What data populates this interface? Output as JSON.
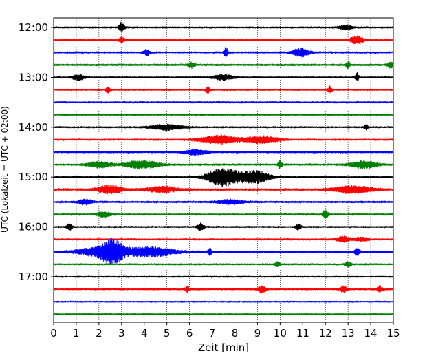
{
  "chart_data": {
    "type": "line",
    "title": "",
    "xlabel": "Zeit  [min]",
    "ylabel": "UTC (Lokalzeit = UTC + 02:00)",
    "xlim": [
      0,
      15
    ],
    "x_ticks": [
      "0",
      "1",
      "2",
      "3",
      "4",
      "5",
      "6",
      "7",
      "8",
      "9",
      "10",
      "11",
      "12",
      "13",
      "14",
      "15"
    ],
    "y_tick_labels": [
      "12:00",
      "13:00",
      "14:00",
      "15:00",
      "16:00",
      "17:00"
    ],
    "grid": "vertical dotted at each minute",
    "trace_interval_minutes": 15,
    "first_trace": "12:00",
    "color_cycle": [
      "#000000",
      "#ff0000",
      "#0000ff",
      "#008000"
    ],
    "traces": [
      {
        "start": "12:00",
        "noise": 1.0,
        "events": [
          {
            "t": 3.0,
            "amp": 7,
            "w": 0.08
          },
          {
            "t": 12.9,
            "amp": 3,
            "w": 0.2
          }
        ]
      },
      {
        "start": "12:15",
        "noise": 1.0,
        "events": [
          {
            "t": 3.0,
            "amp": 4,
            "w": 0.1
          },
          {
            "t": 13.4,
            "amp": 6,
            "w": 0.2
          }
        ]
      },
      {
        "start": "12:30",
        "noise": 1.1,
        "events": [
          {
            "t": 4.1,
            "amp": 4,
            "w": 0.1
          },
          {
            "t": 7.6,
            "amp": 8,
            "w": 0.06
          },
          {
            "t": 10.9,
            "amp": 6,
            "w": 0.25
          }
        ]
      },
      {
        "start": "12:45",
        "noise": 1.2,
        "events": [
          {
            "t": 6.1,
            "amp": 4,
            "w": 0.1
          },
          {
            "t": 13.0,
            "amp": 5,
            "w": 0.06
          },
          {
            "t": 14.9,
            "amp": 5,
            "w": 0.1
          }
        ]
      },
      {
        "start": "13:00",
        "noise": 1.0,
        "events": [
          {
            "t": 1.1,
            "amp": 4,
            "w": 0.2
          },
          {
            "t": 7.5,
            "amp": 4,
            "w": 0.3
          },
          {
            "t": 13.4,
            "amp": 6,
            "w": 0.06
          }
        ]
      },
      {
        "start": "13:15",
        "noise": 1.0,
        "events": [
          {
            "t": 2.4,
            "amp": 5,
            "w": 0.06
          },
          {
            "t": 6.8,
            "amp": 5,
            "w": 0.06
          },
          {
            "t": 12.2,
            "amp": 5,
            "w": 0.06
          }
        ]
      },
      {
        "start": "13:30",
        "noise": 1.1,
        "events": []
      },
      {
        "start": "13:45",
        "noise": 1.0,
        "events": []
      },
      {
        "start": "14:00",
        "noise": 1.0,
        "events": [
          {
            "t": 5.0,
            "amp": 4,
            "w": 0.5
          },
          {
            "t": 13.8,
            "amp": 4,
            "w": 0.06
          }
        ]
      },
      {
        "start": "14:15",
        "noise": 1.1,
        "events": [
          {
            "t": 7.3,
            "amp": 6,
            "w": 0.6
          },
          {
            "t": 9.2,
            "amp": 5,
            "w": 0.5
          }
        ]
      },
      {
        "start": "14:30",
        "noise": 1.1,
        "events": [
          {
            "t": 6.3,
            "amp": 4,
            "w": 0.35
          }
        ]
      },
      {
        "start": "14:45",
        "noise": 1.2,
        "events": [
          {
            "t": 2.0,
            "amp": 4,
            "w": 0.35
          },
          {
            "t": 3.9,
            "amp": 6,
            "w": 0.5
          },
          {
            "t": 10.0,
            "amp": 5,
            "w": 0.06
          },
          {
            "t": 13.7,
            "amp": 5,
            "w": 0.4
          }
        ]
      },
      {
        "start": "15:00",
        "noise": 1.0,
        "events": [
          {
            "t": 7.5,
            "amp": 13,
            "w": 0.5
          },
          {
            "t": 8.9,
            "amp": 9,
            "w": 0.45
          }
        ]
      },
      {
        "start": "15:15",
        "noise": 1.4,
        "events": [
          {
            "t": 2.5,
            "amp": 6,
            "w": 0.4
          },
          {
            "t": 4.8,
            "amp": 4,
            "w": 0.5
          },
          {
            "t": 13.2,
            "amp": 5,
            "w": 0.6
          }
        ]
      },
      {
        "start": "15:30",
        "noise": 1.2,
        "events": [
          {
            "t": 1.4,
            "amp": 4,
            "w": 0.2
          },
          {
            "t": 7.8,
            "amp": 3,
            "w": 0.4
          }
        ]
      },
      {
        "start": "15:45",
        "noise": 1.2,
        "events": [
          {
            "t": 2.2,
            "amp": 4,
            "w": 0.2
          },
          {
            "t": 12.0,
            "amp": 7,
            "w": 0.08
          }
        ]
      },
      {
        "start": "16:00",
        "noise": 1.0,
        "events": [
          {
            "t": 0.7,
            "amp": 5,
            "w": 0.08
          },
          {
            "t": 6.5,
            "amp": 6,
            "w": 0.1
          },
          {
            "t": 10.8,
            "amp": 4,
            "w": 0.08
          }
        ]
      },
      {
        "start": "16:15",
        "noise": 1.1,
        "events": [
          {
            "t": 12.8,
            "amp": 4,
            "w": 0.2
          },
          {
            "t": 13.6,
            "amp": 3,
            "w": 0.2
          }
        ]
      },
      {
        "start": "16:30",
        "noise": 1.3,
        "events": [
          {
            "t": 1.8,
            "amp": 5,
            "w": 0.6
          },
          {
            "t": 2.6,
            "amp": 16,
            "w": 0.35
          },
          {
            "t": 4.2,
            "amp": 7,
            "w": 0.8
          },
          {
            "t": 6.9,
            "amp": 5,
            "w": 0.06
          },
          {
            "t": 13.4,
            "amp": 6,
            "w": 0.08
          }
        ]
      },
      {
        "start": "16:45",
        "noise": 1.0,
        "events": [
          {
            "t": 9.9,
            "amp": 4,
            "w": 0.08
          },
          {
            "t": 13.0,
            "amp": 5,
            "w": 0.08
          }
        ]
      },
      {
        "start": "17:00",
        "noise": 0.9,
        "events": []
      },
      {
        "start": "17:15",
        "noise": 1.0,
        "events": [
          {
            "t": 5.9,
            "amp": 5,
            "w": 0.06
          },
          {
            "t": 9.2,
            "amp": 5,
            "w": 0.12
          },
          {
            "t": 12.8,
            "amp": 5,
            "w": 0.1
          },
          {
            "t": 14.4,
            "amp": 5,
            "w": 0.08
          }
        ]
      },
      {
        "start": "17:30",
        "noise": 0.9,
        "events": []
      },
      {
        "start": "17:45",
        "noise": 0.9,
        "events": []
      }
    ]
  }
}
